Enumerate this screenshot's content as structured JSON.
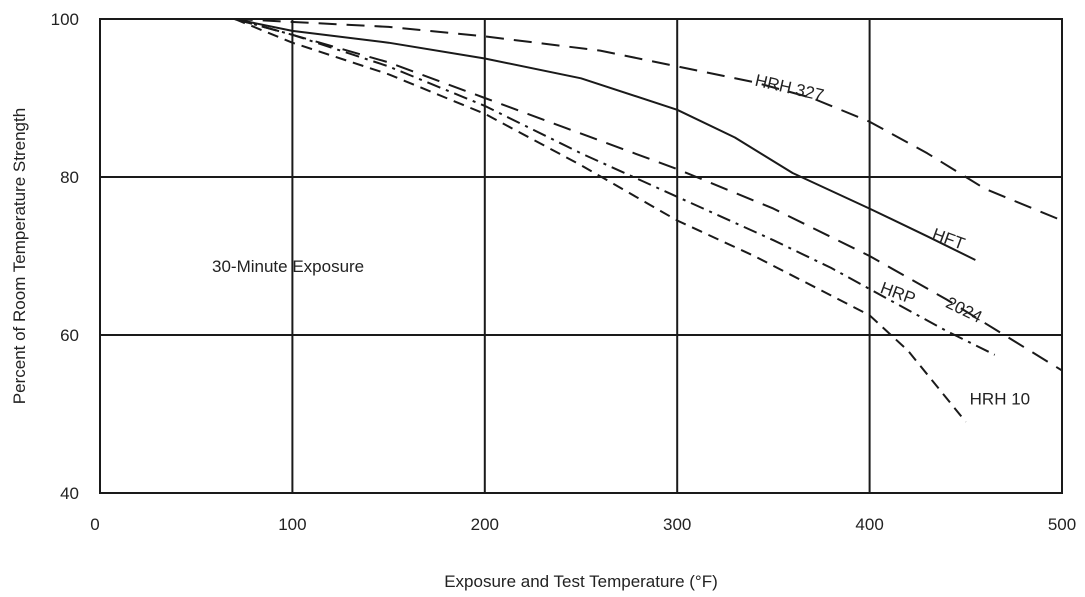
{
  "chart_data": {
    "type": "line",
    "xlabel": "Exposure and Test Temperature (°F)",
    "ylabel": "Percent of Room Temperature Strength",
    "xlim": [
      0,
      500
    ],
    "ylim": [
      40,
      100
    ],
    "x_ticks": [
      0,
      100,
      200,
      300,
      400,
      500
    ],
    "y_ticks": [
      40,
      60,
      80,
      100
    ],
    "grid": true,
    "annotation": "30-Minute Exposure",
    "series": [
      {
        "name": "HRH 327",
        "line_style": "long-dash",
        "x": [
          70,
          150,
          200,
          260,
          300,
          340,
          370,
          400,
          430,
          460,
          500
        ],
        "y": [
          100,
          99,
          97.8,
          96,
          94,
          92,
          90,
          87,
          83,
          78.5,
          74.5
        ]
      },
      {
        "name": "HFT",
        "line_style": "solid",
        "x": [
          70,
          100,
          150,
          200,
          250,
          300,
          330,
          360,
          400,
          430,
          455
        ],
        "y": [
          100,
          98.5,
          97,
          95,
          92.5,
          88.5,
          85,
          80.5,
          76,
          72.5,
          69.5
        ]
      },
      {
        "name": "2024",
        "line_style": "long-dash",
        "x": [
          70,
          100,
          150,
          200,
          250,
          300,
          350,
          400,
          440,
          470,
          500
        ],
        "y": [
          100,
          98,
          94.5,
          90,
          85.5,
          81,
          76,
          70,
          64.5,
          60,
          55.5
        ]
      },
      {
        "name": "HRP",
        "line_style": "dash-dot",
        "x": [
          70,
          100,
          150,
          200,
          250,
          300,
          350,
          380,
          410,
          440,
          465
        ],
        "y": [
          100,
          98,
          94,
          89,
          83,
          77.5,
          72,
          68.5,
          64.5,
          60.5,
          57.5
        ]
      },
      {
        "name": "HRH 10",
        "line_style": "short-dash",
        "x": [
          70,
          100,
          150,
          200,
          250,
          300,
          340,
          380,
          400,
          420,
          450
        ],
        "y": [
          100,
          97,
          93,
          88,
          81.5,
          74.5,
          70,
          65,
          62.5,
          58,
          49
        ]
      }
    ]
  }
}
